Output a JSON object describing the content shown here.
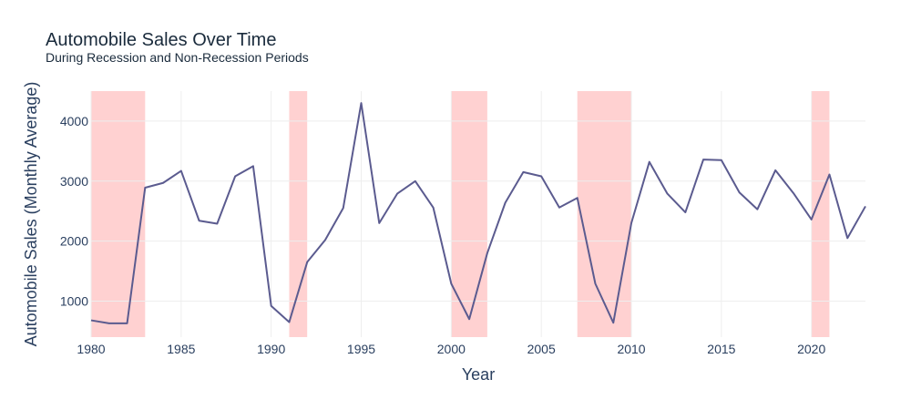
{
  "chart_data": {
    "type": "line",
    "title": "Automobile Sales Over Time",
    "subtitle": "During Recession and Non-Recession Periods",
    "xlabel": "Year",
    "ylabel": "Automobile Sales (Monthly Average)",
    "xlim": [
      1980,
      2023
    ],
    "ylim": [
      400,
      4500
    ],
    "x_ticks": [
      1980,
      1985,
      1990,
      1995,
      2000,
      2005,
      2010,
      2015,
      2020
    ],
    "y_ticks": [
      1000,
      2000,
      3000,
      4000
    ],
    "grid": true,
    "legend": "none",
    "colors": {
      "line": "#5b5b8f",
      "recession_fill": "#ff9999",
      "grid": "#eeeeee"
    },
    "recession_periods": [
      [
        1980,
        1983
      ],
      [
        1991,
        1992
      ],
      [
        2000,
        2002
      ],
      [
        2007,
        2010
      ],
      [
        2020,
        2021
      ]
    ],
    "x": [
      1980,
      1981,
      1982,
      1983,
      1984,
      1985,
      1986,
      1987,
      1988,
      1989,
      1990,
      1991,
      1992,
      1993,
      1994,
      1995,
      1996,
      1997,
      1998,
      1999,
      2000,
      2001,
      2002,
      2003,
      2004,
      2005,
      2006,
      2007,
      2008,
      2009,
      2010,
      2011,
      2012,
      2013,
      2014,
      2015,
      2016,
      2017,
      2018,
      2019,
      2020,
      2021,
      2022,
      2023
    ],
    "values": [
      680,
      630,
      630,
      2890,
      2970,
      3170,
      2340,
      2290,
      3080,
      3250,
      920,
      650,
      1650,
      2020,
      2550,
      4300,
      2300,
      2790,
      3000,
      2560,
      1290,
      700,
      1800,
      2640,
      3150,
      3080,
      2560,
      2720,
      1290,
      640,
      2300,
      3320,
      2790,
      2480,
      3360,
      3350,
      2810,
      2530,
      3180,
      2800,
      2360,
      3110,
      2050,
      2580
    ]
  }
}
